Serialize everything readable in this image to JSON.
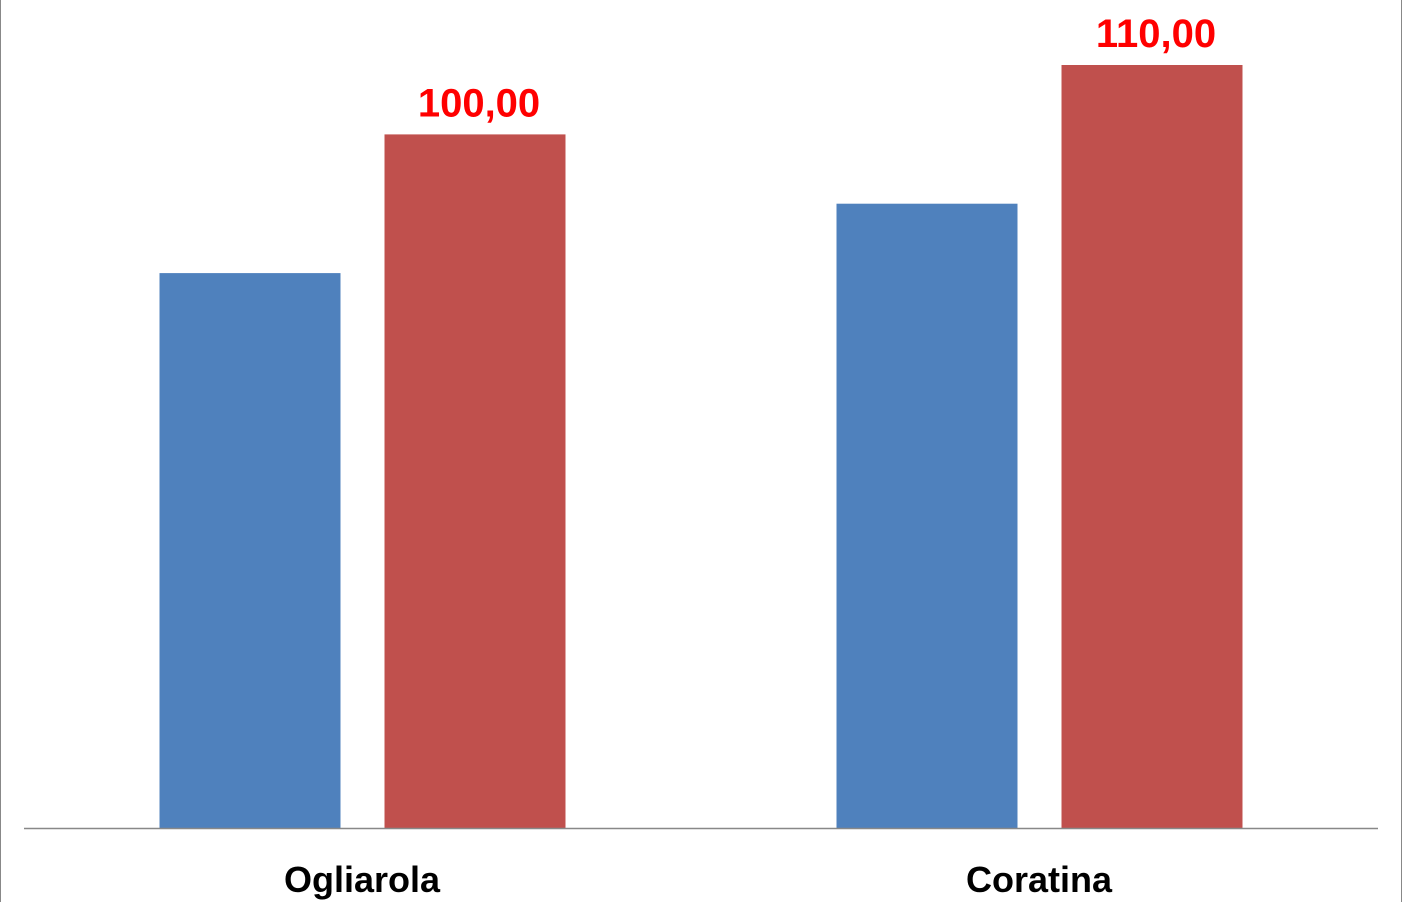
{
  "chart_data": {
    "type": "bar",
    "categories": [
      "Ogliarola",
      "Coratina"
    ],
    "series": [
      {
        "values": [
          80,
          90
        ],
        "color": "#4F81BD"
      },
      {
        "values": [
          100,
          110
        ],
        "color": "#C0504D",
        "data_labels": [
          "100,00",
          "110,00"
        ]
      }
    ],
    "ylim": [
      0,
      110
    ],
    "data_label_color": "#FF0000",
    "axis_color": "#888888",
    "grid": false,
    "title": "",
    "xlabel": "",
    "ylabel": ""
  }
}
